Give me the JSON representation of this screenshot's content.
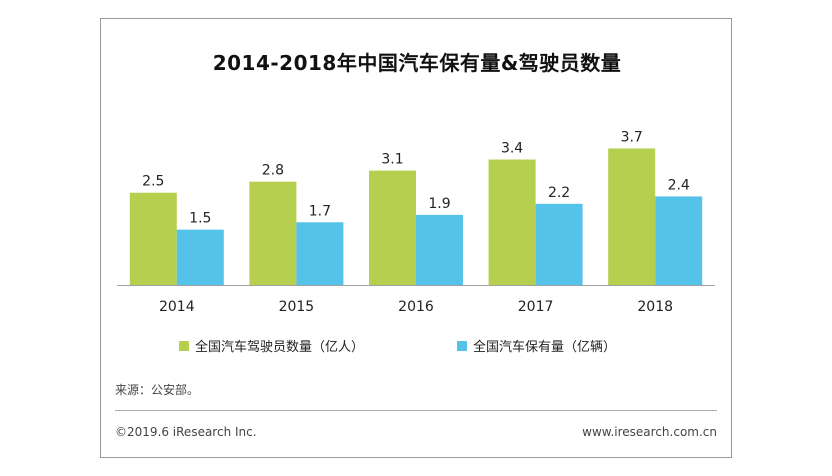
{
  "chart_data": {
    "type": "bar",
    "title": "2014-2018年中国汽车保有量&驾驶员数量",
    "categories": [
      "2014",
      "2015",
      "2016",
      "2017",
      "2018"
    ],
    "series": [
      {
        "name": "全国汽车驾驶员数量（亿人）",
        "values": [
          2.5,
          2.8,
          3.1,
          3.4,
          3.7
        ],
        "color": "#b6cf4f"
      },
      {
        "name": "全国汽车保有量（亿辆）",
        "values": [
          1.5,
          1.7,
          1.9,
          2.2,
          2.4
        ],
        "color": "#55c2ea"
      }
    ],
    "ylim": [
      0,
      4.2
    ],
    "grid": false,
    "legend": "bottom-left"
  },
  "footer": {
    "source": "来源：公安部。",
    "copyright": "©2019.6 iResearch Inc.",
    "website": "www.iresearch.com.cn"
  }
}
